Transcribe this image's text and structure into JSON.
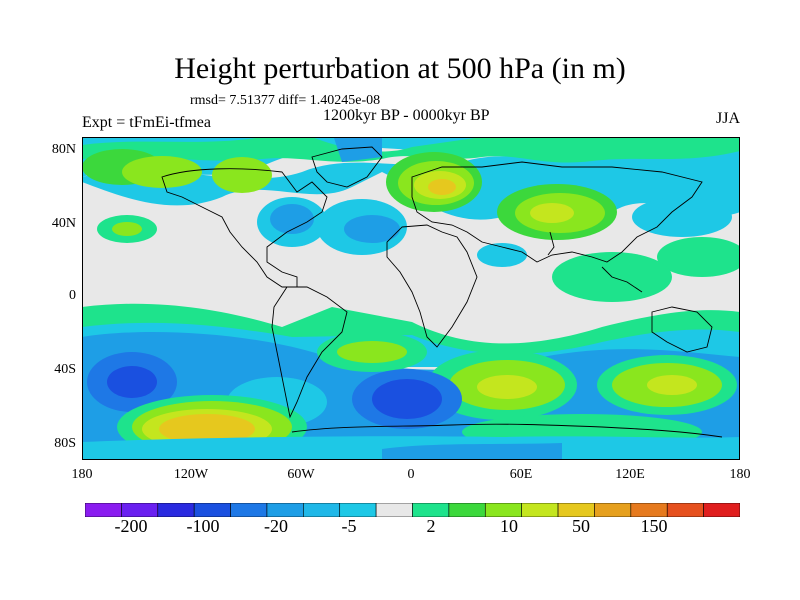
{
  "title": "Height perturbation at 500 hPa (in m)",
  "stats": "rmsd= 7.51377 diff= 1.40245e-08",
  "period": "1200kyr BP - 0000kyr BP",
  "expt": "Expt = tFmEi-tfmea",
  "season": "JJA",
  "lat_ticks": [
    "80N",
    "40N",
    "0",
    "40S",
    "80S"
  ],
  "lon_ticks": [
    "180",
    "120W",
    "60W",
    "0",
    "60E",
    "120E",
    "180"
  ],
  "colorbar": {
    "colors": [
      "#8a1cf0",
      "#6a20f0",
      "#2a2ae0",
      "#1a50e0",
      "#1e78e6",
      "#1e9ee6",
      "#20b8e8",
      "#1ec8e6",
      "#e8e8e8",
      "#1ee38c",
      "#3cd83c",
      "#8ae61e",
      "#c4e61e",
      "#e6c81e",
      "#e6a01e",
      "#e67a1e",
      "#e6501e",
      "#e01e1e"
    ],
    "labels": [
      "-200",
      "-100",
      "-20",
      "-5",
      "2",
      "10",
      "50",
      "150"
    ]
  }
}
